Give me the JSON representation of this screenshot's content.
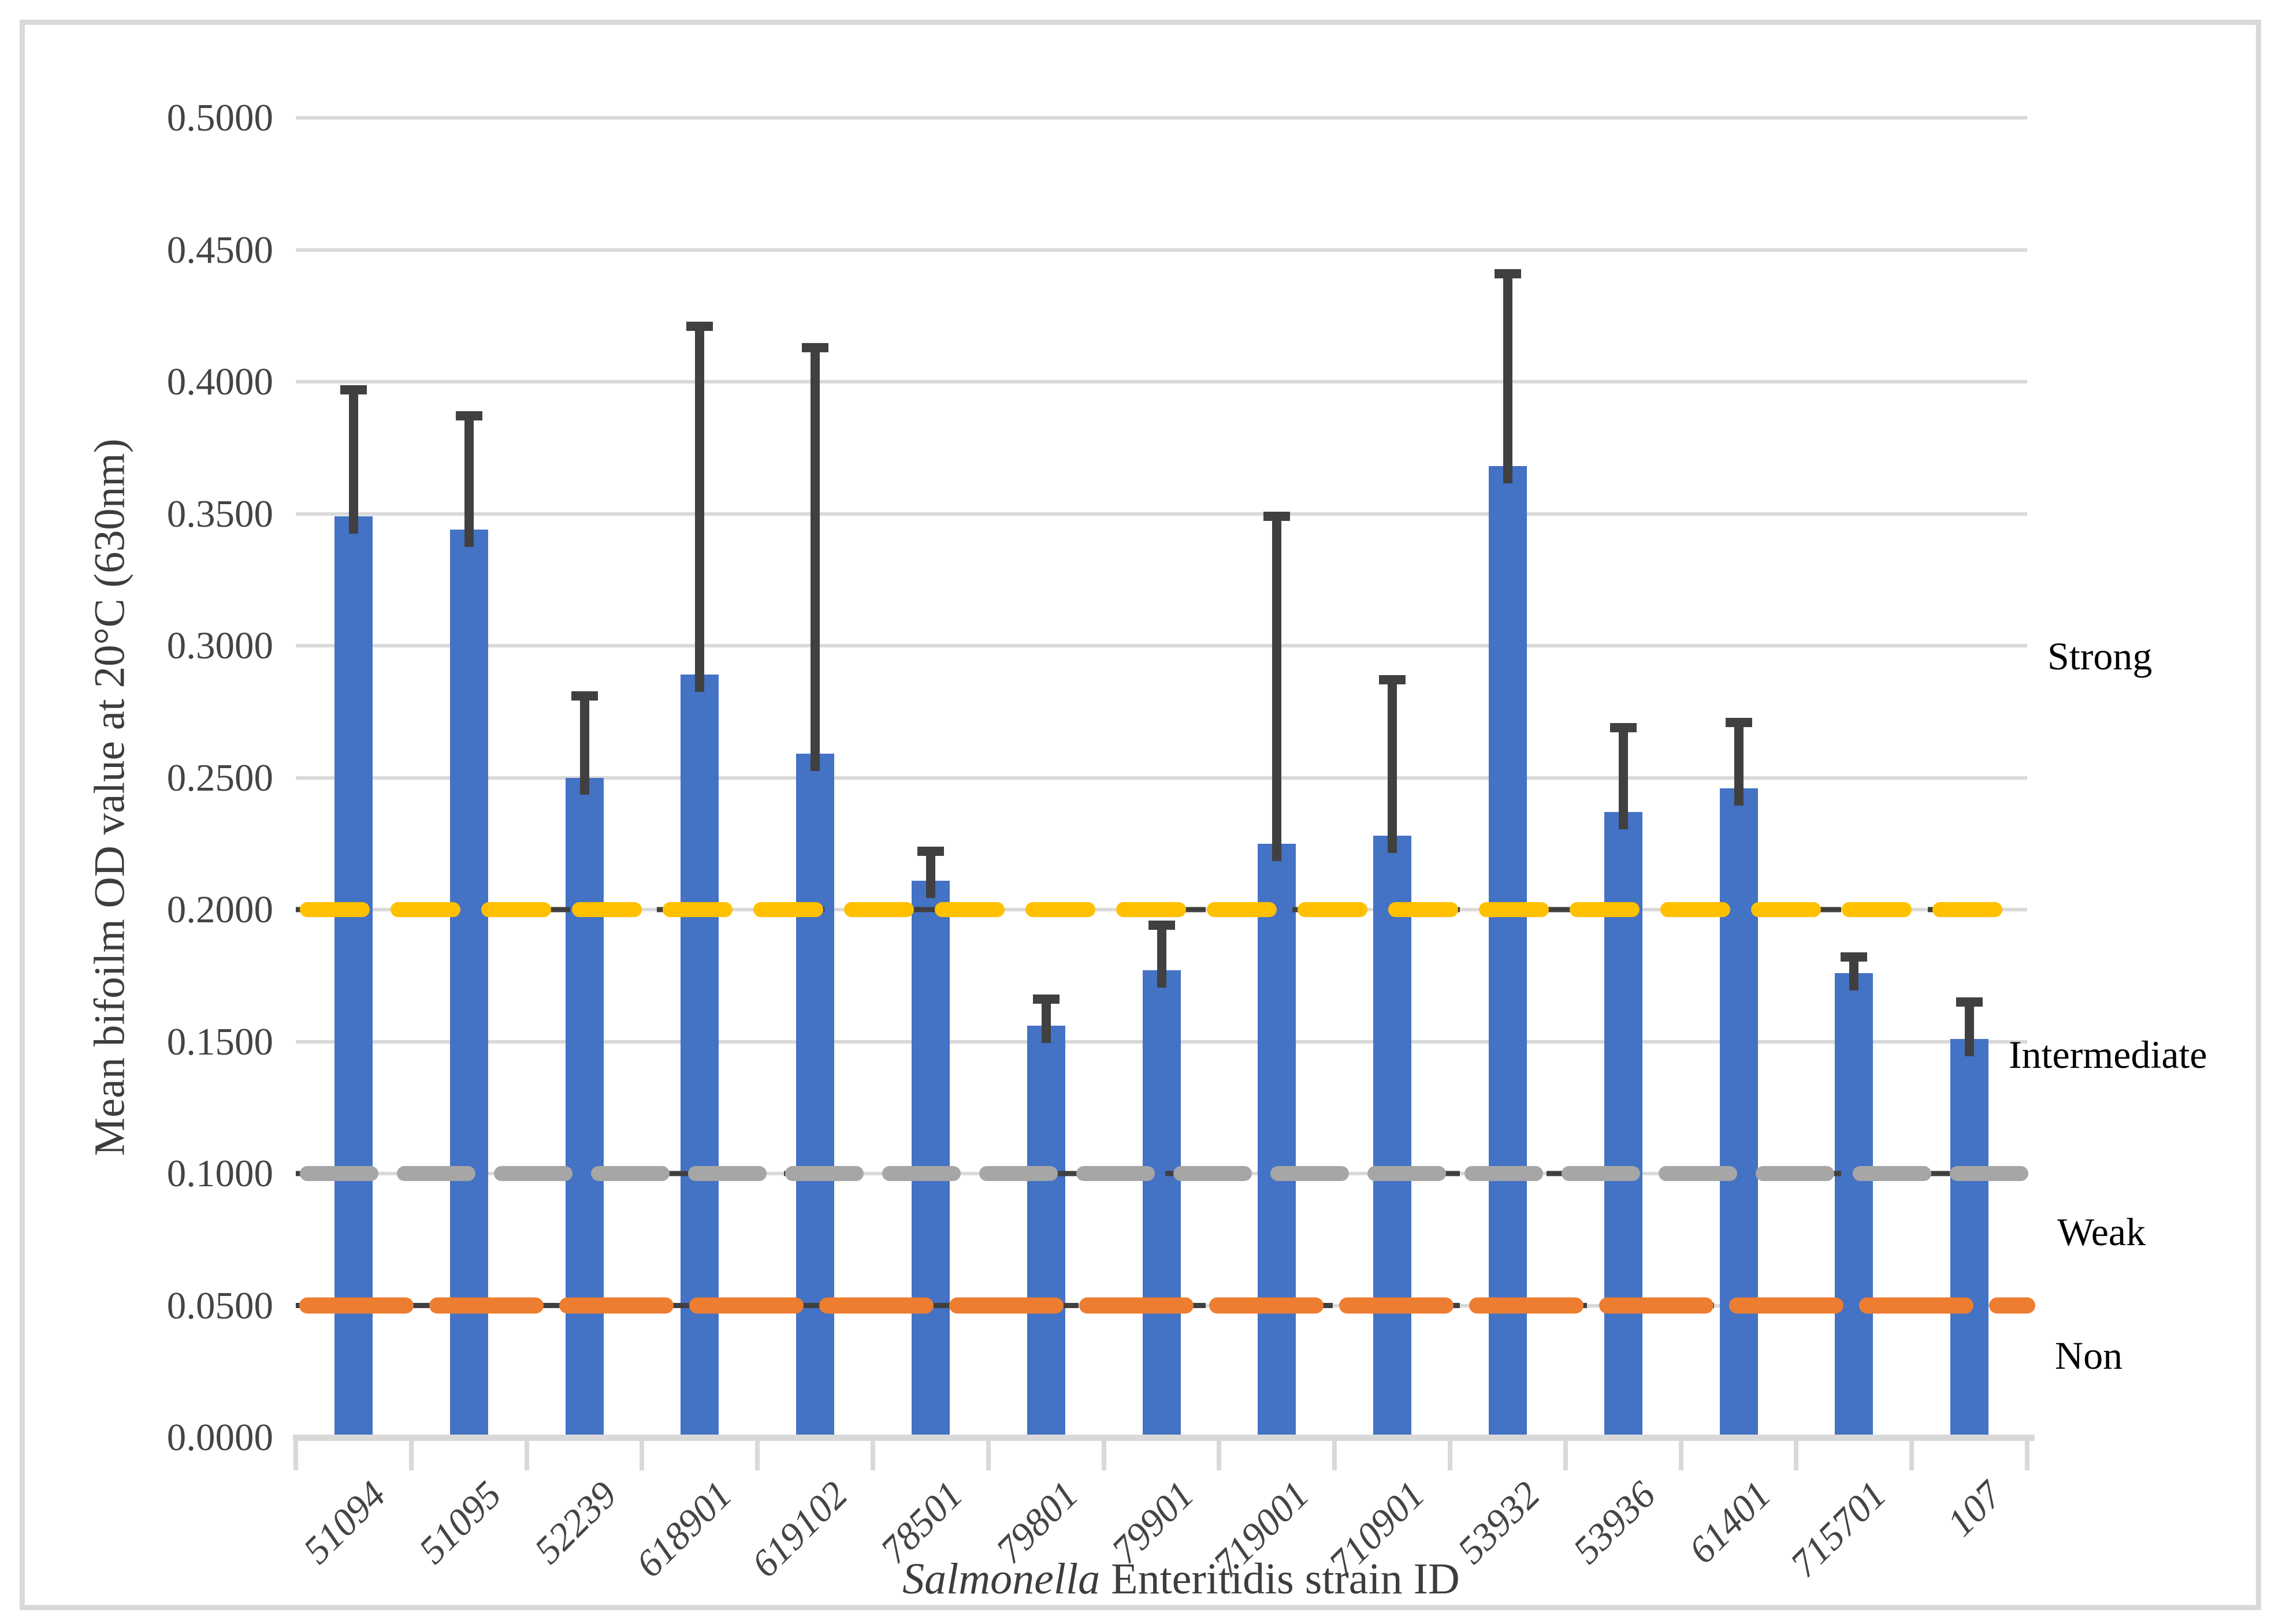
{
  "page": {
    "background": "#FFFFFF",
    "border_color": "#D9D9D9"
  },
  "chart_data": {
    "type": "bar",
    "title": "",
    "ylabel": "Mean bifoilm OD value at 20°C (630nm)",
    "xlabel_italic": "Salmonella",
    "xlabel_rest": " Enteritidis strain ID",
    "categories": [
      "51094",
      "51095",
      "52239",
      "618901",
      "619102",
      "78501",
      "79801",
      "79901",
      "719001",
      "710901",
      "53932",
      "53936",
      "61401",
      "715701",
      "107"
    ],
    "series": [
      {
        "name": "Mean biofilm OD value",
        "color": "#4472C4",
        "values": [
          0.349,
          0.344,
          0.25,
          0.289,
          0.259,
          0.211,
          0.156,
          0.177,
          0.225,
          0.228,
          0.368,
          0.237,
          0.246,
          0.176,
          0.151
        ]
      }
    ],
    "error_upper": [
      0.048,
      0.043,
      0.031,
      0.132,
      0.154,
      0.011,
      0.01,
      0.017,
      0.124,
      0.059,
      0.073,
      0.032,
      0.025,
      0.006,
      0.014
    ],
    "ylim": [
      0,
      0.5
    ],
    "ytick_step": 0.05,
    "ytick_labels": [
      "0.0000",
      "0.0500",
      "0.1000",
      "0.1500",
      "0.2000",
      "0.2500",
      "0.3000",
      "0.3500",
      "0.4000",
      "0.4500",
      "0.5000"
    ],
    "grid": true,
    "gridline_color": "#D9D9D9",
    "axis_color": "#D9D9D9",
    "error_bar_color": "#404040",
    "legend_position": "none",
    "threshold_lines": [
      {
        "value": 0.2,
        "color": "#FFC000",
        "style": "dashed",
        "dash": "95 62",
        "width": 26
      },
      {
        "value": 0.1,
        "color": "#A6A6A6",
        "style": "dashed",
        "dash": "110 58",
        "width": 26
      },
      {
        "value": 0.05,
        "color": "#ED7D31",
        "style": "dashed",
        "dash": "170 55",
        "width": 28
      }
    ],
    "zone_labels": [
      {
        "text": "Strong",
        "value": 0.296
      },
      {
        "text": "Intermediate",
        "value": 0.145
      },
      {
        "text": "Weak",
        "value": 0.078
      },
      {
        "text": "Non",
        "value": 0.031
      }
    ]
  }
}
